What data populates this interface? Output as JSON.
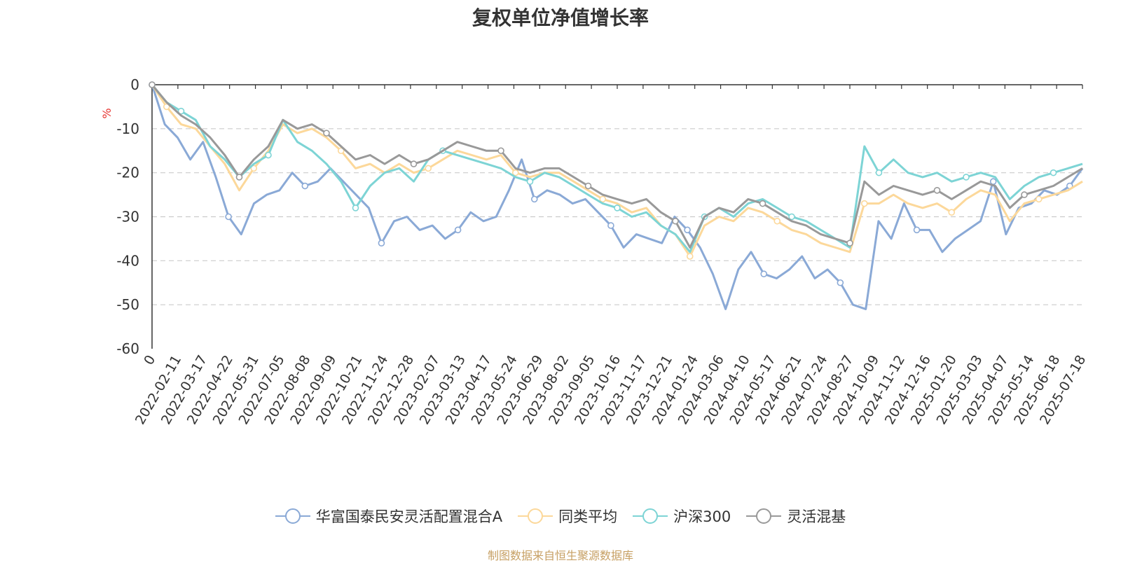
{
  "chart_data": {
    "type": "line",
    "title": "复权单位净值增长率",
    "ylabel": "%",
    "ylim": [
      -60,
      0
    ],
    "yticks": [
      "0",
      "-10",
      "-20",
      "-30",
      "-40",
      "-50",
      "-60"
    ],
    "x_tick_labels": [
      "0",
      "2022-02-11",
      "2022-03-17",
      "2022-04-22",
      "2022-05-31",
      "2022-07-05",
      "2022-08-08",
      "2022-09-09",
      "2022-10-21",
      "2022-11-24",
      "2022-12-28",
      "2023-02-07",
      "2023-03-13",
      "2023-04-17",
      "2023-05-24",
      "2023-06-29",
      "2023-08-02",
      "2023-09-05",
      "2023-10-16",
      "2023-11-17",
      "2023-12-21",
      "2024-01-24",
      "2024-03-06",
      "2024-04-10",
      "2024-05-17",
      "2024-06-21",
      "2024-07-24",
      "2024-08-27",
      "2024-10-09",
      "2024-11-12",
      "2024-12-16",
      "2025-01-20",
      "2025-03-03",
      "2025-04-07",
      "2025-05-14",
      "2025-06-18",
      "2025-07-18"
    ],
    "grid": "horizontal dashed",
    "legend_position": "bottom",
    "series": [
      {
        "name": "华富国泰民安灵活配置混合A",
        "color": "#8aa9d6",
        "values": [
          0,
          -9,
          -12,
          -17,
          -13,
          -21,
          -30,
          -34,
          -27,
          -25,
          -24,
          -20,
          -23,
          -22,
          -19,
          -22,
          -25,
          -28,
          -36,
          -31,
          -30,
          -33,
          -32,
          -35,
          -33,
          -29,
          -31,
          -30,
          -24,
          -17,
          -26,
          -24,
          -25,
          -27,
          -26,
          -29,
          -32,
          -37,
          -34,
          -35,
          -36,
          -30,
          -33,
          -37,
          -43,
          -51,
          -42,
          -38,
          -43,
          -44,
          -42,
          -39,
          -44,
          -42,
          -45,
          -50,
          -51,
          -31,
          -35,
          -27,
          -33,
          -33,
          -38,
          -35,
          -33,
          -31,
          -22,
          -34,
          -28,
          -27,
          -24,
          -25,
          -23,
          -19
        ]
      },
      {
        "name": "同类平均",
        "color": "#fcd89a",
        "values": [
          0,
          -5,
          -9,
          -10,
          -14,
          -18,
          -24,
          -19,
          -15,
          -9,
          -11,
          -10,
          -12,
          -15,
          -19,
          -18,
          -20,
          -18,
          -20,
          -19,
          -17,
          -15,
          -16,
          -17,
          -16,
          -20,
          -21,
          -20,
          -20,
          -22,
          -24,
          -26,
          -27,
          -29,
          -28,
          -32,
          -34,
          -39,
          -32,
          -30,
          -31,
          -28,
          -29,
          -31,
          -33,
          -34,
          -36,
          -37,
          -38,
          -27,
          -27,
          -25,
          -27,
          -28,
          -27,
          -29,
          -26,
          -24,
          -25,
          -31,
          -27,
          -26,
          -25,
          -24,
          -22
        ]
      },
      {
        "name": "沪深300",
        "color": "#7dd4d5",
        "values": [
          0,
          -4,
          -6,
          -8,
          -14,
          -17,
          -21,
          -18,
          -16,
          -8,
          -13,
          -15,
          -18,
          -22,
          -28,
          -23,
          -20,
          -19,
          -22,
          -17,
          -15,
          -16,
          -17,
          -18,
          -19,
          -21,
          -22,
          -20,
          -21,
          -23,
          -25,
          -27,
          -28,
          -30,
          -29,
          -32,
          -34,
          -38,
          -30,
          -28,
          -30,
          -27,
          -26,
          -28,
          -30,
          -31,
          -33,
          -35,
          -37,
          -14,
          -20,
          -17,
          -20,
          -21,
          -20,
          -22,
          -21,
          -20,
          -21,
          -26,
          -23,
          -21,
          -20,
          -19,
          -18
        ]
      },
      {
        "name": "灵活混基",
        "color": "#999999",
        "values": [
          0,
          -4,
          -7,
          -9,
          -12,
          -16,
          -21,
          -17,
          -14,
          -8,
          -10,
          -9,
          -11,
          -14,
          -17,
          -16,
          -18,
          -16,
          -18,
          -17,
          -15,
          -13,
          -14,
          -15,
          -15,
          -19,
          -20,
          -19,
          -19,
          -21,
          -23,
          -25,
          -26,
          -27,
          -26,
          -29,
          -31,
          -37,
          -30,
          -28,
          -29,
          -26,
          -27,
          -29,
          -31,
          -32,
          -34,
          -35,
          -36,
          -22,
          -25,
          -23,
          -24,
          -25,
          -24,
          -26,
          -24,
          -22,
          -23,
          -28,
          -25,
          -24,
          -23,
          -21,
          -19
        ]
      }
    ]
  },
  "footer": {
    "source": "制图数据来自恒生聚源数据库"
  }
}
